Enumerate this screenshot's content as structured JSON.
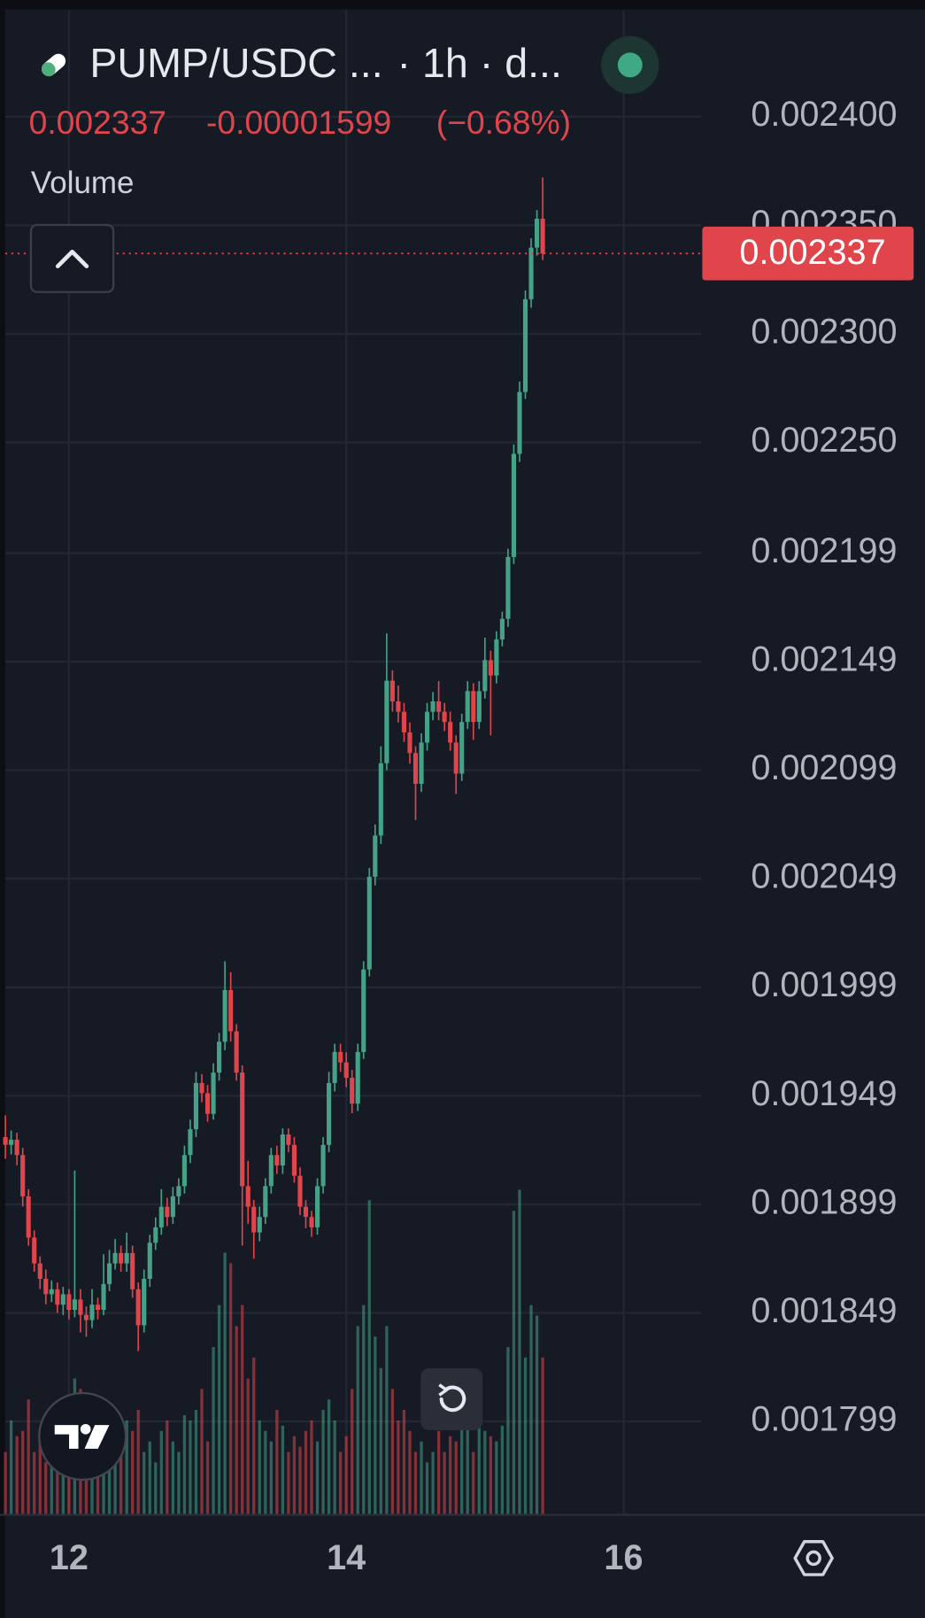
{
  "chart_data": {
    "type": "candlestick",
    "title": "PUMP/USDC ...",
    "interval": "· 1h · d...",
    "last_price": 0.002337,
    "price_change": "-0.00001599",
    "price_change_pct": "(−0.68%)",
    "volume_label": "Volume",
    "up_color": "#45a287",
    "down_color": "#e0454b",
    "grid": true,
    "xlim": [
      11.54,
      16.56
    ],
    "xticks": [
      12,
      14,
      16
    ],
    "ylim": [
      0.001756,
      0.002449
    ],
    "yticks": [
      {
        "value": 0.0024,
        "label": "0.002400"
      },
      {
        "value": 0.00235,
        "label": "0.002350"
      },
      {
        "value": 0.0023,
        "label": "0.002300"
      },
      {
        "value": 0.00225,
        "label": "0.002250"
      },
      {
        "value": 0.002199,
        "label": "0.002199"
      },
      {
        "value": 0.002149,
        "label": "0.002149"
      },
      {
        "value": 0.002099,
        "label": "0.002099"
      },
      {
        "value": 0.002049,
        "label": "0.002049"
      },
      {
        "value": 0.001999,
        "label": "0.001999"
      },
      {
        "value": 0.001949,
        "label": "0.001949"
      },
      {
        "value": 0.001899,
        "label": "0.001899"
      },
      {
        "value": 0.001849,
        "label": "0.001849"
      },
      {
        "value": 0.001799,
        "label": "0.001799"
      }
    ],
    "x": [
      11.5417,
      11.5833,
      11.625,
      11.6667,
      11.7083,
      11.75,
      11.7917,
      11.8333,
      11.875,
      11.9167,
      11.9583,
      12,
      12.0417,
      12.0833,
      12.125,
      12.1667,
      12.2083,
      12.25,
      12.2917,
      12.3333,
      12.375,
      12.4167,
      12.4583,
      12.5,
      12.5417,
      12.5833,
      12.625,
      12.6667,
      12.7083,
      12.75,
      12.7917,
      12.8333,
      12.875,
      12.9167,
      12.9583,
      13,
      13.0417,
      13.0833,
      13.125,
      13.1667,
      13.2083,
      13.25,
      13.2917,
      13.3333,
      13.375,
      13.4167,
      13.4583,
      13.5,
      13.5417,
      13.5833,
      13.625,
      13.6667,
      13.7083,
      13.75,
      13.7917,
      13.8333,
      13.875,
      13.9167,
      13.9583,
      14,
      14.0417,
      14.0833,
      14.125,
      14.1667,
      14.2083,
      14.25,
      14.2917,
      14.3333,
      14.375,
      14.4167,
      14.4583,
      14.5,
      14.5417,
      14.5833,
      14.625,
      14.6667,
      14.7083,
      14.75,
      14.7917,
      14.8333,
      14.875,
      14.9167,
      14.9583,
      15,
      15.0417,
      15.0833,
      15.125,
      15.1667,
      15.2083,
      15.25,
      15.2917,
      15.3333,
      15.375,
      15.4167
    ],
    "open": [
      0.00193,
      0.0019264,
      0.0019288,
      0.0019217,
      0.0019027,
      0.0018837,
      0.0018718,
      0.0018647,
      0.0018576,
      0.0018599,
      0.0018528,
      0.0018576,
      0.0018504,
      0.0018552,
      0.0018481,
      0.0018457,
      0.0018528,
      0.0018504,
      0.0018623,
      0.0018718,
      0.0018766,
      0.0018718,
      0.0018766,
      0.0018599,
      0.0018433,
      0.0018647,
      0.0018813,
      0.0018884,
      0.0018979,
      0.0018932,
      0.0019027,
      0.0019074,
      0.0019217,
      0.0019336,
      0.0019549,
      0.0019502,
      0.0019407,
      0.0019597,
      0.0019739,
      0.0019977,
      0.0019787,
      0.0019597,
      0.0019074,
      0.0018979,
      0.0018861,
      0.0018932,
      0.0019074,
      0.0019217,
      0.0019169,
      0.0019312,
      0.0019264,
      0.0019122,
      0.0018979,
      0.0018932,
      0.0018884,
      0.0019074,
      0.0019264,
      0.0019549,
      0.0019692,
      0.0019644,
      0.0019573,
      0.0019454,
      0.0019692,
      0.0020072,
      0.0020499,
      0.0020689,
      0.0021022,
      0.0021402,
      0.0021307,
      0.0021259,
      0.0021164,
      0.0021069,
      0.0020927,
      0.0021117,
      0.0021259,
      0.0021307,
      0.0021259,
      0.0021212,
      0.0021117,
      0.0020974,
      0.0021212,
      0.0021354,
      0.0021212,
      0.0021354,
      0.0021497,
      0.0021426,
      0.0021592,
      0.0021687,
      0.0021972,
      0.0022447,
      0.0022732,
      0.0023159,
      0.0023397,
      0.002353
    ],
    "high": [
      0.00194,
      0.001933,
      0.001932,
      0.001925,
      0.001906,
      0.001887,
      0.001875,
      0.001869,
      0.001864,
      0.001863,
      0.001861,
      0.00186,
      0.0019146,
      0.00186,
      0.001852,
      0.00186,
      0.001856,
      0.001876,
      0.001878,
      0.001883,
      0.00188,
      0.001886,
      0.00188,
      0.001863,
      0.001869,
      0.001885,
      0.001893,
      0.001906,
      0.001902,
      0.001907,
      0.001911,
      0.001926,
      0.001938,
      0.00196,
      0.001959,
      0.001954,
      0.001964,
      0.001978,
      0.002011,
      0.002006,
      0.001982,
      0.001963,
      0.001919,
      0.001901,
      0.001898,
      0.001911,
      0.001925,
      0.001926,
      0.001934,
      0.001934,
      0.00193,
      0.001916,
      0.001901,
      0.001896,
      0.001911,
      0.00193,
      0.00196,
      0.001973,
      0.001973,
      0.001969,
      0.001961,
      0.001973,
      0.002011,
      0.002054,
      0.002074,
      0.00211,
      0.002162,
      0.002145,
      0.002138,
      0.00213,
      0.002121,
      0.00211,
      0.002116,
      0.00213,
      0.002135,
      0.00214,
      0.00213,
      0.002126,
      0.002115,
      0.002125,
      0.00214,
      0.002139,
      0.00214,
      0.00216,
      0.002154,
      0.002163,
      0.002172,
      0.002201,
      0.002249,
      0.002278,
      0.00232,
      0.002344,
      0.002357,
      0.002372
    ],
    "low": [
      0.00192,
      0.001922,
      0.001917,
      0.001898,
      0.00188,
      0.001868,
      0.00186,
      0.001853,
      0.001854,
      0.001849,
      0.001848,
      0.001846,
      0.001847,
      0.00184,
      0.001838,
      0.001842,
      0.001846,
      0.001848,
      0.001859,
      0.001869,
      0.001868,
      0.001868,
      0.001856,
      0.0018314,
      0.00184,
      0.001861,
      0.001878,
      0.001885,
      0.001889,
      0.00189,
      0.001899,
      0.001904,
      0.001918,
      0.00193,
      0.001946,
      0.001937,
      0.001938,
      0.001956,
      0.00197,
      0.001974,
      0.001956,
      0.00188,
      0.00189,
      0.001874,
      0.001882,
      0.00189,
      0.001904,
      0.001913,
      0.001913,
      0.001923,
      0.001909,
      0.001894,
      0.001888,
      0.001884,
      0.001885,
      0.001904,
      0.001923,
      0.001951,
      0.00196,
      0.001953,
      0.001941,
      0.001942,
      0.001966,
      0.002004,
      0.002046,
      0.002065,
      0.002099,
      0.002126,
      0.002121,
      0.002112,
      0.002102,
      0.002076,
      0.002089,
      0.002108,
      0.002122,
      0.002122,
      0.002117,
      0.002108,
      0.002088,
      0.002094,
      0.002118,
      0.002113,
      0.002118,
      0.002132,
      0.002115,
      0.002139,
      0.002156,
      0.002165,
      0.002194,
      0.002241,
      0.00227,
      0.002312,
      0.002336,
      0.002334
    ],
    "close": [
      0.0019264,
      0.0019288,
      0.0019217,
      0.0019027,
      0.0018837,
      0.0018718,
      0.0018647,
      0.0018576,
      0.0018599,
      0.0018528,
      0.0018576,
      0.0018504,
      0.0018552,
      0.0018481,
      0.0018457,
      0.0018528,
      0.0018504,
      0.0018623,
      0.0018718,
      0.0018766,
      0.0018718,
      0.0018766,
      0.0018599,
      0.0018433,
      0.0018647,
      0.0018813,
      0.0018884,
      0.0018979,
      0.0018932,
      0.0019027,
      0.0019074,
      0.0019217,
      0.0019336,
      0.0019549,
      0.0019502,
      0.0019407,
      0.0019597,
      0.0019739,
      0.0019977,
      0.0019787,
      0.0019597,
      0.0019074,
      0.0018979,
      0.0018861,
      0.0018932,
      0.0019074,
      0.0019217,
      0.0019169,
      0.0019312,
      0.0019264,
      0.0019122,
      0.0018979,
      0.0018932,
      0.0018884,
      0.0019074,
      0.0019264,
      0.0019549,
      0.0019692,
      0.0019644,
      0.0019573,
      0.0019454,
      0.0019692,
      0.0020072,
      0.0020499,
      0.0020689,
      0.0021022,
      0.0021402,
      0.0021307,
      0.0021259,
      0.0021164,
      0.0021069,
      0.0020927,
      0.0021117,
      0.0021259,
      0.0021307,
      0.0021259,
      0.0021212,
      0.0021117,
      0.0020974,
      0.0021212,
      0.0021354,
      0.0021212,
      0.0021354,
      0.0021497,
      0.0021426,
      0.0021592,
      0.0021687,
      0.0021972,
      0.0022447,
      0.0022732,
      0.0023159,
      0.0023397,
      0.002353,
      0.002337
    ],
    "volume": [
      60,
      90,
      75,
      80,
      110,
      60,
      70,
      50,
      80,
      90,
      110,
      70,
      130,
      120,
      70,
      60,
      90,
      80,
      70,
      60,
      75,
      90,
      80,
      100,
      60,
      70,
      50,
      80,
      90,
      70,
      60,
      95,
      90,
      100,
      120,
      70,
      160,
      200,
      250,
      240,
      180,
      200,
      130,
      150,
      90,
      80,
      70,
      100,
      85,
      60,
      75,
      65,
      80,
      90,
      70,
      100,
      110,
      90,
      60,
      75,
      120,
      180,
      200,
      300,
      170,
      140,
      180,
      120,
      90,
      100,
      80,
      60,
      70,
      50,
      60,
      80,
      60,
      75,
      70,
      90,
      85,
      60,
      95,
      80,
      75,
      70,
      85,
      160,
      290,
      310,
      150,
      200,
      190,
      150
    ]
  }
}
